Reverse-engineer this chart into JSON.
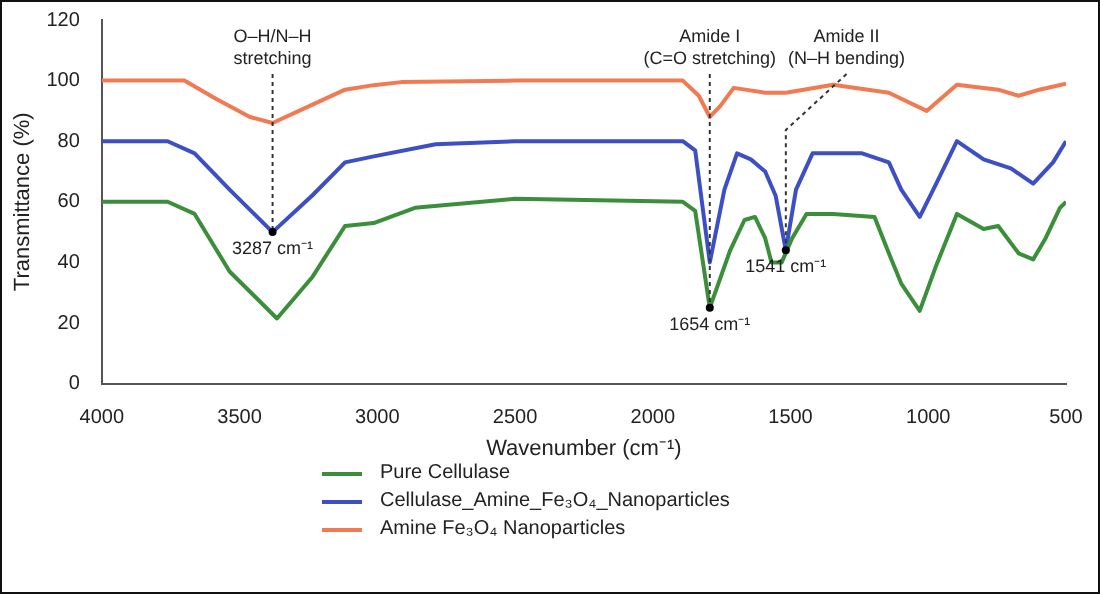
{
  "chart_data": {
    "type": "line",
    "xlabel": "Wavenumber (cm⁻¹)",
    "ylabel": "Transmittance (%)",
    "xlim": [
      4000,
      500
    ],
    "xticks": [
      4000,
      3500,
      3000,
      2500,
      2000,
      1500,
      1000,
      500
    ],
    "ylim": [
      0,
      120
    ],
    "yticks": [
      0,
      20,
      40,
      60,
      80,
      100,
      120
    ],
    "grid": false,
    "legend": "bottom",
    "marker": "none",
    "line_style": "solid",
    "series": [
      {
        "name": "Pure Cellulase",
        "color": "#3b8f3b",
        "x": [
          4000,
          3761,
          3663,
          3536,
          3364,
          3237,
          3117,
          3013,
          2863,
          2500,
          1891,
          1846,
          1793,
          1719,
          1667,
          1629,
          1592,
          1569,
          1532,
          1494,
          1442,
          1345,
          1195,
          1143,
          1098,
          1031,
          971,
          896,
          799,
          746,
          672,
          619,
          574,
          522,
          500
        ],
        "values": [
          60,
          60,
          56,
          37,
          21.5,
          35,
          52,
          53,
          58,
          61,
          60,
          57,
          25,
          44,
          54,
          55,
          48,
          40,
          40,
          48,
          56,
          56,
          55,
          43,
          33,
          24,
          39,
          56,
          51,
          52,
          43,
          41,
          48,
          58,
          60
        ]
      },
      {
        "name": "Cellulase_Amine_Fe₃O₄_Nanoparticles",
        "color": "#3d4fc4",
        "x": [
          4000,
          3761,
          3663,
          3536,
          3380,
          3237,
          3117,
          3013,
          2788,
          2500,
          1891,
          1846,
          1793,
          1740,
          1694,
          1644,
          1592,
          1554,
          1517,
          1480,
          1420,
          1240,
          1143,
          1098,
          1031,
          971,
          896,
          799,
          700,
          619,
          547,
          500
        ],
        "values": [
          80,
          80,
          76,
          64,
          50,
          62,
          73,
          75,
          79,
          80,
          80,
          77,
          40,
          64,
          76,
          74,
          70,
          62,
          44,
          64,
          76,
          76,
          73,
          64,
          55,
          66,
          80,
          74,
          71,
          66,
          73,
          80
        ]
      },
      {
        "name": "Amine Fe₃O₄ Nanoparticles",
        "color": "#f27a52",
        "x": [
          4000,
          3700,
          3586,
          3462,
          3380,
          3237,
          3117,
          3013,
          2913,
          2500,
          1891,
          1833,
          1793,
          1756,
          1706,
          1592,
          1517,
          1345,
          1143,
          1006,
          896,
          746,
          672,
          597,
          500
        ],
        "values": [
          100,
          100,
          94,
          88,
          86,
          92,
          97,
          98.5,
          99.5,
          100,
          100,
          95,
          88,
          91.5,
          97.6,
          96,
          96,
          98.6,
          96,
          90,
          98.6,
          97,
          95,
          97,
          99
        ]
      }
    ],
    "annotations": [
      {
        "text": "O–H/N–H\nstretching",
        "x": 3380,
        "y": 50
      },
      {
        "text": "Amide I\n(C=O stretching)",
        "x": 1793,
        "y": 25
      },
      {
        "text": "Amide II\n(N–H bending)",
        "x": 1517,
        "y": 44
      },
      {
        "text": "3287 cm⁻¹",
        "x": 3380,
        "y": 50
      },
      {
        "text": "1654 cm⁻¹",
        "x": 1793,
        "y": 25
      },
      {
        "text": "1541 cm⁻¹",
        "x": 1517,
        "y": 44
      }
    ]
  }
}
